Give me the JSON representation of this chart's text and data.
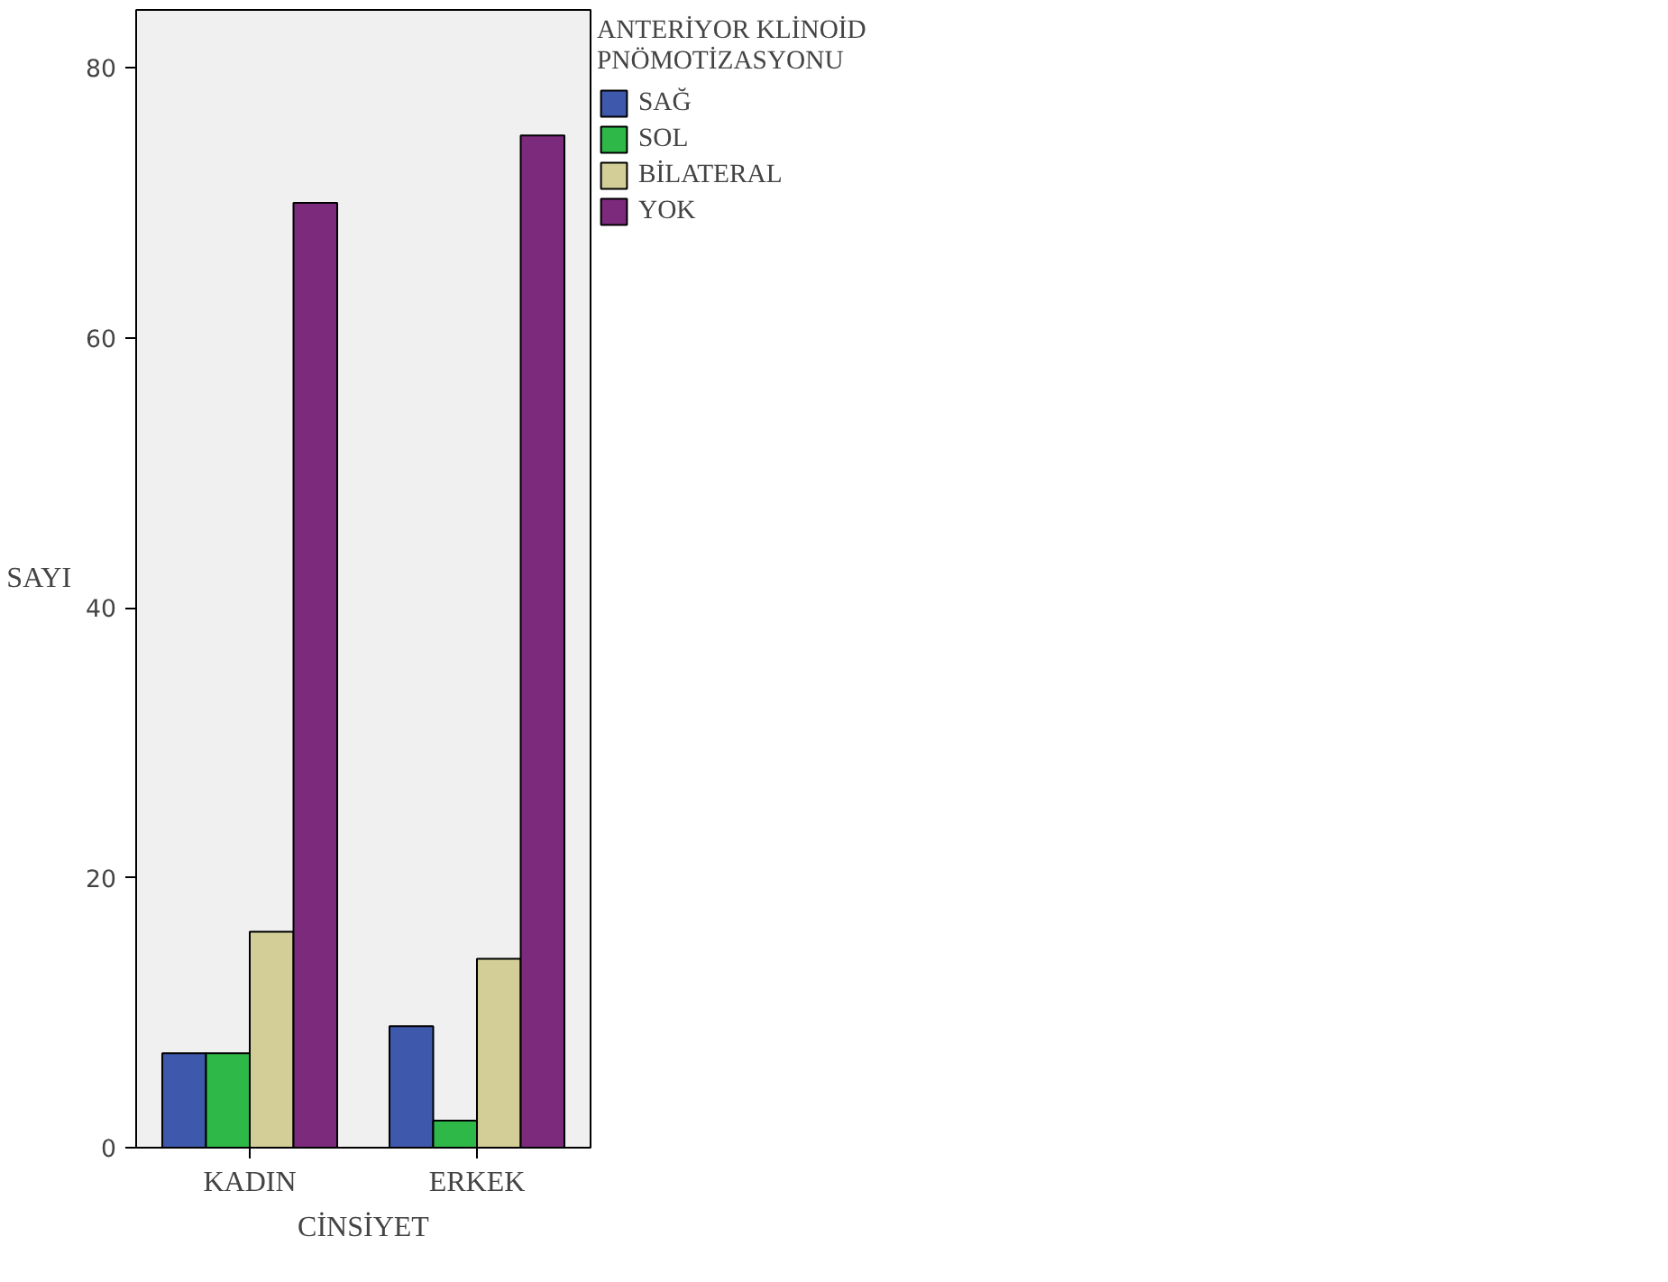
{
  "chart_data": {
    "type": "bar",
    "xlabel": "CİNSİYET",
    "ylabel": "SAYI",
    "legend_title": "ANTERİYOR KLİNOİD PNÖMOTİZASYONU",
    "categories": [
      "KADIN",
      "ERKEK"
    ],
    "series": [
      {
        "name": "SAĞ",
        "color": "#3e58ac",
        "values": [
          7,
          9
        ]
      },
      {
        "name": "SOL",
        "color": "#2eb848",
        "values": [
          7,
          2
        ]
      },
      {
        "name": "BİLATERAL",
        "color": "#d3ce97",
        "values": [
          16,
          14
        ]
      },
      {
        "name": "YOK",
        "color": "#7b2a7c",
        "values": [
          70,
          75
        ]
      }
    ],
    "ylim": [
      0,
      84.3
    ],
    "yticks": [
      0,
      20,
      40,
      60,
      80
    ],
    "grid": false,
    "legend": "right"
  }
}
